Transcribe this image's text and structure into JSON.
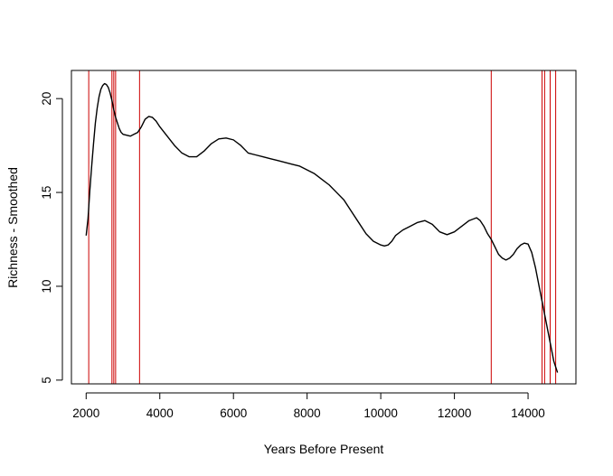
{
  "chart_data": {
    "type": "line",
    "title": "",
    "xlabel": "Years Before Present",
    "ylabel": "Richness - Smoothed",
    "xlim": [
      1600,
      15300
    ],
    "ylim": [
      4.8,
      21.5
    ],
    "x_ticks": [
      2000,
      4000,
      6000,
      8000,
      10000,
      12000,
      14000
    ],
    "y_ticks": [
      5,
      10,
      15,
      20
    ],
    "grid": false,
    "legend": "none",
    "colors": {
      "line": "#000000",
      "vlines": "#cc0000",
      "axis": "#000000"
    },
    "series": [
      {
        "x": [
          2000,
          2050,
          2100,
          2150,
          2200,
          2250,
          2300,
          2350,
          2400,
          2450,
          2500,
          2550,
          2600,
          2650,
          2700,
          2750,
          2800,
          2850,
          2900,
          2950,
          3000,
          3100,
          3200,
          3300,
          3400,
          3500,
          3600,
          3700,
          3800,
          3900,
          4000,
          4200,
          4400,
          4600,
          4800,
          5000,
          5200,
          5400,
          5600,
          5800,
          6000,
          6200,
          6400,
          6600,
          6800,
          7000,
          7200,
          7400,
          7600,
          7800,
          8000,
          8200,
          8400,
          8600,
          8800,
          9000,
          9200,
          9400,
          9600,
          9800,
          10000,
          10100,
          10200,
          10300,
          10400,
          10600,
          10800,
          11000,
          11200,
          11400,
          11600,
          11800,
          12000,
          12200,
          12400,
          12600,
          12700,
          12800,
          12900,
          13000,
          13100,
          13200,
          13300,
          13400,
          13500,
          13600,
          13700,
          13800,
          13900,
          14000,
          14100,
          14200,
          14300,
          14400,
          14500,
          14600,
          14700,
          14800
        ],
        "y": [
          12.7,
          13.6,
          15.1,
          16.4,
          17.6,
          18.7,
          19.5,
          20.1,
          20.5,
          20.7,
          20.8,
          20.75,
          20.6,
          20.3,
          19.9,
          19.4,
          19.0,
          18.7,
          18.4,
          18.2,
          18.1,
          18.05,
          18.0,
          18.1,
          18.2,
          18.5,
          18.9,
          19.05,
          19.0,
          18.8,
          18.5,
          18.0,
          17.5,
          17.1,
          16.9,
          16.9,
          17.2,
          17.6,
          17.85,
          17.9,
          17.8,
          17.5,
          17.1,
          17.0,
          16.9,
          16.8,
          16.7,
          16.6,
          16.5,
          16.4,
          16.2,
          16.0,
          15.7,
          15.4,
          15.0,
          14.6,
          14.0,
          13.4,
          12.8,
          12.4,
          12.2,
          12.15,
          12.2,
          12.4,
          12.7,
          13.0,
          13.2,
          13.4,
          13.5,
          13.3,
          12.9,
          12.75,
          12.9,
          13.2,
          13.5,
          13.65,
          13.5,
          13.2,
          12.8,
          12.5,
          12.1,
          11.7,
          11.5,
          11.4,
          11.5,
          11.7,
          12.0,
          12.2,
          12.3,
          12.25,
          11.8,
          11.0,
          10.0,
          9.0,
          8.0,
          7.0,
          6.0,
          5.4
        ]
      }
    ],
    "vlines": [
      2070,
      2700,
      2750,
      2800,
      3450,
      13000,
      14380,
      14450,
      14600,
      14750
    ]
  }
}
